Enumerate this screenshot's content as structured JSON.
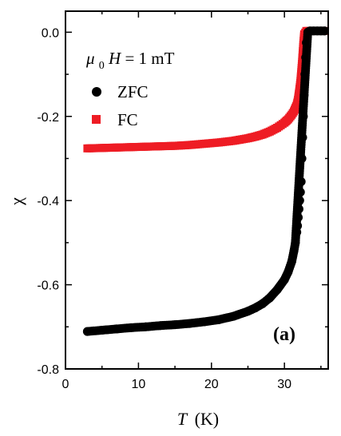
{
  "chart_data": {
    "type": "scatter",
    "xlabel": {
      "symbol": "T",
      "unit": "(K)"
    },
    "ylabel": "χ",
    "xlim": [
      0,
      36
    ],
    "ylim": [
      -0.8,
      0.05
    ],
    "x_ticks": [
      0,
      10,
      20,
      30
    ],
    "y_ticks": [
      0.0,
      -0.2,
      -0.4,
      -0.6,
      -0.8
    ],
    "x_tick_labels": [
      "0",
      "10",
      "20",
      "30"
    ],
    "y_tick_labels": [
      "0.0",
      "-0.2",
      "-0.4",
      "-0.6",
      "-0.8"
    ],
    "grid": false,
    "legend_position": "top-left",
    "annotation": {
      "field_symbol": "μ",
      "field_subscript": "0",
      "field_var": "H",
      "field_value": " = 1 mT"
    },
    "panel_label": "(a)",
    "series": [
      {
        "name": "ZFC",
        "marker": "circle",
        "color": "#000000",
        "points": [
          [
            3.0,
            -0.711
          ],
          [
            5.0,
            -0.708
          ],
          [
            7.0,
            -0.705
          ],
          [
            9.0,
            -0.702
          ],
          [
            11.0,
            -0.7
          ],
          [
            13.0,
            -0.697
          ],
          [
            15.0,
            -0.695
          ],
          [
            17.0,
            -0.692
          ],
          [
            19.0,
            -0.688
          ],
          [
            21.0,
            -0.683
          ],
          [
            23.0,
            -0.675
          ],
          [
            25.0,
            -0.663
          ],
          [
            26.0,
            -0.655
          ],
          [
            27.0,
            -0.645
          ],
          [
            28.0,
            -0.631
          ],
          [
            29.0,
            -0.612
          ],
          [
            30.0,
            -0.588
          ],
          [
            30.5,
            -0.57
          ],
          [
            31.0,
            -0.545
          ],
          [
            31.3,
            -0.52
          ],
          [
            31.5,
            -0.5
          ],
          [
            31.7,
            -0.475
          ],
          [
            31.8,
            -0.46
          ],
          [
            31.9,
            -0.44
          ],
          [
            32.0,
            -0.42
          ],
          [
            32.1,
            -0.4
          ],
          [
            32.2,
            -0.38
          ],
          [
            32.3,
            -0.355
          ],
          [
            32.4,
            -0.3
          ],
          [
            32.5,
            -0.25
          ],
          [
            32.6,
            -0.2
          ],
          [
            32.7,
            -0.15
          ],
          [
            32.8,
            -0.1
          ],
          [
            32.9,
            -0.06
          ],
          [
            33.0,
            -0.025
          ],
          [
            33.2,
            0.0
          ],
          [
            33.5,
            0.003
          ],
          [
            34.0,
            0.003
          ],
          [
            34.5,
            0.003
          ],
          [
            35.0,
            0.003
          ],
          [
            35.5,
            0.003
          ]
        ]
      },
      {
        "name": "FC",
        "marker": "square",
        "color": "#ee1c24",
        "points": [
          [
            3.0,
            -0.276
          ],
          [
            5.0,
            -0.275
          ],
          [
            7.0,
            -0.274
          ],
          [
            9.0,
            -0.273
          ],
          [
            11.0,
            -0.272
          ],
          [
            13.0,
            -0.271
          ],
          [
            15.0,
            -0.27
          ],
          [
            17.0,
            -0.268
          ],
          [
            19.0,
            -0.265
          ],
          [
            21.0,
            -0.262
          ],
          [
            23.0,
            -0.258
          ],
          [
            25.0,
            -0.252
          ],
          [
            26.0,
            -0.248
          ],
          [
            27.0,
            -0.243
          ],
          [
            28.0,
            -0.236
          ],
          [
            29.0,
            -0.227
          ],
          [
            30.0,
            -0.215
          ],
          [
            30.5,
            -0.207
          ],
          [
            31.0,
            -0.196
          ],
          [
            31.3,
            -0.188
          ],
          [
            31.5,
            -0.18
          ],
          [
            31.7,
            -0.172
          ],
          [
            31.8,
            -0.165
          ],
          [
            31.9,
            -0.155
          ],
          [
            32.0,
            -0.143
          ],
          [
            32.1,
            -0.13
          ],
          [
            32.2,
            -0.115
          ],
          [
            32.3,
            -0.095
          ],
          [
            32.4,
            -0.075
          ],
          [
            32.5,
            -0.05
          ],
          [
            32.6,
            -0.025
          ],
          [
            32.7,
            -0.005
          ],
          [
            33.0,
            0.003
          ],
          [
            33.5,
            0.003
          ],
          [
            34.0,
            0.003
          ],
          [
            34.5,
            0.003
          ],
          [
            35.0,
            0.003
          ],
          [
            35.5,
            0.003
          ]
        ]
      }
    ]
  }
}
